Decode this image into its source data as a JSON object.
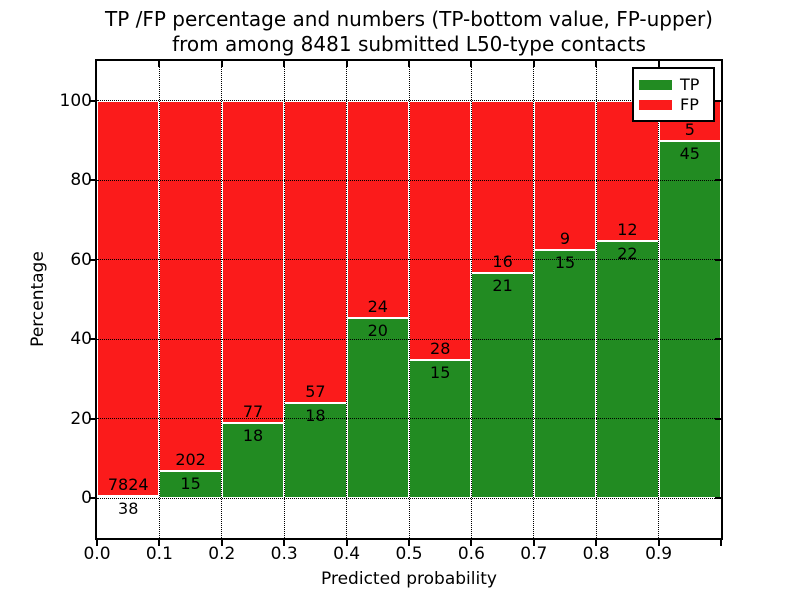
{
  "title": {
    "line1": "TP /FP percentage and numbers (TP-bottom value, FP-upper)",
    "line2": "from among 8481 submitted L50-type contacts"
  },
  "axes": {
    "xlabel": "Predicted probability",
    "ylabel": "Percentage",
    "x_tick_labels": [
      "0.0",
      "0.1",
      "0.2",
      "0.3",
      "0.4",
      "0.5",
      "0.6",
      "0.7",
      "0.8",
      "0.9"
    ],
    "y_tick_labels": [
      "0",
      "20",
      "40",
      "60",
      "80",
      "100"
    ],
    "y_tick_values": [
      0,
      20,
      40,
      60,
      80,
      100
    ],
    "xlim": [
      0.0,
      1.0
    ],
    "ylim": [
      -10,
      110
    ],
    "grid_style": "dotted"
  },
  "legend": {
    "position": "upper right",
    "items": [
      {
        "label": "TP",
        "color": "#228B22"
      },
      {
        "label": "FP",
        "color": "#FB1B1B"
      }
    ]
  },
  "chart_data": {
    "type": "bar",
    "stacked": true,
    "normalized": "percent of bin total",
    "title": "TP /FP percentage and numbers (TP-bottom value, FP-upper) from among 8481 submitted L50-type contacts",
    "xlabel": "Predicted probability",
    "ylabel": "Percentage",
    "bin_width": 0.1,
    "categories": [
      "0.0",
      "0.1",
      "0.2",
      "0.3",
      "0.4",
      "0.5",
      "0.6",
      "0.7",
      "0.8",
      "0.9"
    ],
    "series": [
      {
        "name": "TP",
        "color": "#228B22",
        "values": [
          38,
          15,
          18,
          18,
          20,
          15,
          21,
          15,
          22,
          45
        ]
      },
      {
        "name": "FP",
        "color": "#FB1B1B",
        "values": [
          7824,
          202,
          77,
          57,
          24,
          28,
          16,
          9,
          12,
          5
        ]
      }
    ],
    "tp_percent": [
      0.48,
      6.91,
      18.95,
      24.0,
      45.45,
      34.88,
      56.76,
      62.5,
      64.71,
      90.0
    ],
    "total_contacts": 8481,
    "xlim": [
      0.0,
      1.0
    ],
    "ylim": [
      -10,
      110
    ],
    "legend_position": "upper right"
  }
}
